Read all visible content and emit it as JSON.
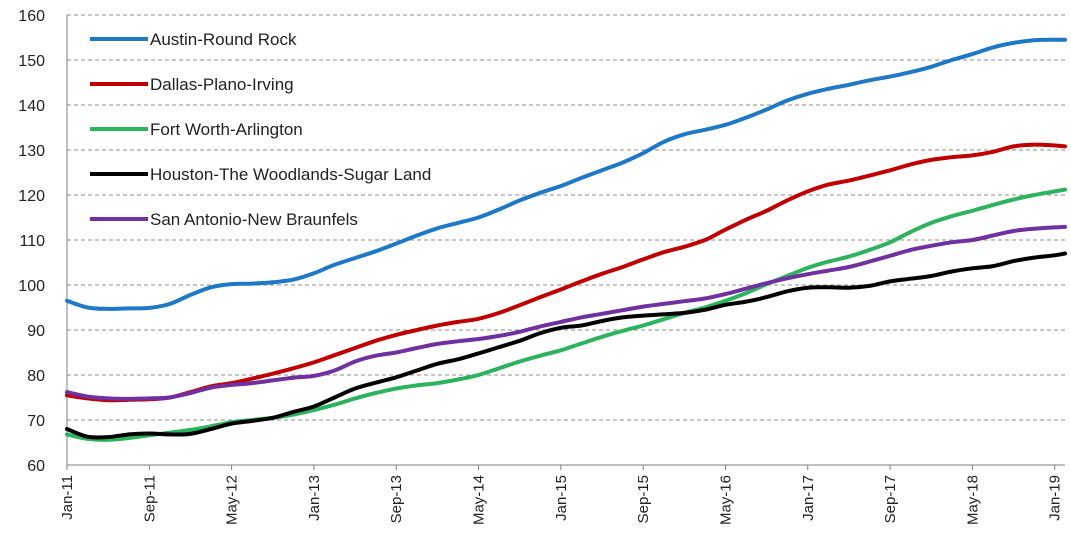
{
  "chart_data": {
    "type": "line",
    "title": "",
    "xlabel": "",
    "ylabel": "",
    "ylim": [
      60,
      160
    ],
    "y_ticks": [
      60,
      70,
      80,
      90,
      100,
      110,
      120,
      130,
      140,
      150,
      160
    ],
    "grid": "horizontal dashed",
    "legend_position": "top-left",
    "x_tick_labels": [
      "Jan-11",
      "Sep-11",
      "May-12",
      "Jan-13",
      "Sep-13",
      "May-14",
      "Jan-15",
      "Sep-15",
      "May-16",
      "Jan-17",
      "Sep-17",
      "May-18",
      "Jan-19"
    ],
    "x_start": "2011-01",
    "x_end": "2019-02",
    "series": [
      {
        "name": "Austin-Round Rock",
        "color": "#1f77c8",
        "points": [
          [
            "2011-01",
            96.5
          ],
          [
            "2011-03",
            95.0
          ],
          [
            "2011-05",
            94.7
          ],
          [
            "2011-07",
            94.8
          ],
          [
            "2011-09",
            94.9
          ],
          [
            "2011-11",
            95.8
          ],
          [
            "2012-01",
            97.8
          ],
          [
            "2012-03",
            99.5
          ],
          [
            "2012-05",
            100.2
          ],
          [
            "2012-07",
            100.3
          ],
          [
            "2012-09",
            100.6
          ],
          [
            "2012-11",
            101.2
          ],
          [
            "2013-01",
            102.6
          ],
          [
            "2013-03",
            104.5
          ],
          [
            "2013-05",
            106.0
          ],
          [
            "2013-07",
            107.5
          ],
          [
            "2013-09",
            109.2
          ],
          [
            "2013-11",
            111.0
          ],
          [
            "2014-01",
            112.6
          ],
          [
            "2014-03",
            113.8
          ],
          [
            "2014-05",
            115.0
          ],
          [
            "2014-07",
            116.8
          ],
          [
            "2014-09",
            118.8
          ],
          [
            "2014-11",
            120.5
          ],
          [
            "2015-01",
            122.0
          ],
          [
            "2015-03",
            123.8
          ],
          [
            "2015-05",
            125.5
          ],
          [
            "2015-07",
            127.2
          ],
          [
            "2015-09",
            129.3
          ],
          [
            "2015-11",
            131.8
          ],
          [
            "2016-01",
            133.5
          ],
          [
            "2016-03",
            134.5
          ],
          [
            "2016-05",
            135.6
          ],
          [
            "2016-07",
            137.2
          ],
          [
            "2016-09",
            139.0
          ],
          [
            "2016-11",
            141.0
          ],
          [
            "2017-01",
            142.5
          ],
          [
            "2017-03",
            143.6
          ],
          [
            "2017-05",
            144.5
          ],
          [
            "2017-07",
            145.5
          ],
          [
            "2017-09",
            146.3
          ],
          [
            "2017-11",
            147.3
          ],
          [
            "2018-01",
            148.5
          ],
          [
            "2018-03",
            150.0
          ],
          [
            "2018-05",
            151.3
          ],
          [
            "2018-07",
            152.8
          ],
          [
            "2018-09",
            153.8
          ],
          [
            "2018-11",
            154.4
          ],
          [
            "2019-01",
            154.5
          ],
          [
            "2019-02",
            154.5
          ]
        ]
      },
      {
        "name": "Dallas-Plano-Irving",
        "color": "#c00000",
        "points": [
          [
            "2011-01",
            75.5
          ],
          [
            "2011-03",
            74.8
          ],
          [
            "2011-05",
            74.4
          ],
          [
            "2011-07",
            74.5
          ],
          [
            "2011-09",
            74.6
          ],
          [
            "2011-11",
            75.0
          ],
          [
            "2012-01",
            76.2
          ],
          [
            "2012-03",
            77.5
          ],
          [
            "2012-05",
            78.2
          ],
          [
            "2012-07",
            79.2
          ],
          [
            "2012-09",
            80.3
          ],
          [
            "2012-11",
            81.5
          ],
          [
            "2013-01",
            82.8
          ],
          [
            "2013-03",
            84.4
          ],
          [
            "2013-05",
            86.0
          ],
          [
            "2013-07",
            87.6
          ],
          [
            "2013-09",
            88.9
          ],
          [
            "2013-11",
            90.0
          ],
          [
            "2014-01",
            91.0
          ],
          [
            "2014-03",
            91.8
          ],
          [
            "2014-05",
            92.5
          ],
          [
            "2014-07",
            93.8
          ],
          [
            "2014-09",
            95.5
          ],
          [
            "2014-11",
            97.3
          ],
          [
            "2015-01",
            99.0
          ],
          [
            "2015-03",
            100.8
          ],
          [
            "2015-05",
            102.5
          ],
          [
            "2015-07",
            104.0
          ],
          [
            "2015-09",
            105.7
          ],
          [
            "2015-11",
            107.3
          ],
          [
            "2016-01",
            108.5
          ],
          [
            "2016-03",
            110.0
          ],
          [
            "2016-05",
            112.3
          ],
          [
            "2016-07",
            114.5
          ],
          [
            "2016-09",
            116.5
          ],
          [
            "2016-11",
            118.8
          ],
          [
            "2017-01",
            120.8
          ],
          [
            "2017-03",
            122.3
          ],
          [
            "2017-05",
            123.2
          ],
          [
            "2017-07",
            124.3
          ],
          [
            "2017-09",
            125.5
          ],
          [
            "2017-11",
            126.8
          ],
          [
            "2018-01",
            127.8
          ],
          [
            "2018-03",
            128.4
          ],
          [
            "2018-05",
            128.8
          ],
          [
            "2018-07",
            129.6
          ],
          [
            "2018-09",
            130.8
          ],
          [
            "2018-11",
            131.2
          ],
          [
            "2019-01",
            131.0
          ],
          [
            "2019-02",
            130.8
          ]
        ]
      },
      {
        "name": "Fort Worth-Arlington",
        "color": "#2db35d",
        "points": [
          [
            "2011-01",
            66.8
          ],
          [
            "2011-03",
            65.8
          ],
          [
            "2011-05",
            65.6
          ],
          [
            "2011-07",
            66.0
          ],
          [
            "2011-09",
            66.6
          ],
          [
            "2011-11",
            67.2
          ],
          [
            "2012-01",
            67.8
          ],
          [
            "2012-03",
            68.6
          ],
          [
            "2012-05",
            69.5
          ],
          [
            "2012-07",
            70.0
          ],
          [
            "2012-09",
            70.5
          ],
          [
            "2012-11",
            71.2
          ],
          [
            "2013-01",
            72.2
          ],
          [
            "2013-03",
            73.4
          ],
          [
            "2013-05",
            74.8
          ],
          [
            "2013-07",
            76.0
          ],
          [
            "2013-09",
            77.0
          ],
          [
            "2013-11",
            77.7
          ],
          [
            "2014-01",
            78.2
          ],
          [
            "2014-03",
            79.0
          ],
          [
            "2014-05",
            80.0
          ],
          [
            "2014-07",
            81.5
          ],
          [
            "2014-09",
            83.0
          ],
          [
            "2014-11",
            84.3
          ],
          [
            "2015-01",
            85.5
          ],
          [
            "2015-03",
            87.0
          ],
          [
            "2015-05",
            88.5
          ],
          [
            "2015-07",
            89.8
          ],
          [
            "2015-09",
            91.0
          ],
          [
            "2015-11",
            92.4
          ],
          [
            "2016-01",
            93.8
          ],
          [
            "2016-03",
            95.0
          ],
          [
            "2016-05",
            96.5
          ],
          [
            "2016-07",
            98.2
          ],
          [
            "2016-09",
            100.2
          ],
          [
            "2016-11",
            102.0
          ],
          [
            "2017-01",
            103.8
          ],
          [
            "2017-03",
            105.2
          ],
          [
            "2017-05",
            106.3
          ],
          [
            "2017-07",
            107.8
          ],
          [
            "2017-09",
            109.5
          ],
          [
            "2017-11",
            111.8
          ],
          [
            "2018-01",
            113.8
          ],
          [
            "2018-03",
            115.3
          ],
          [
            "2018-05",
            116.5
          ],
          [
            "2018-07",
            117.8
          ],
          [
            "2018-09",
            119.0
          ],
          [
            "2018-11",
            120.0
          ],
          [
            "2019-01",
            120.8
          ],
          [
            "2019-02",
            121.2
          ]
        ]
      },
      {
        "name": "Houston-The Woodlands-Sugar Land",
        "color": "#000000",
        "points": [
          [
            "2011-01",
            68.0
          ],
          [
            "2011-03",
            66.3
          ],
          [
            "2011-05",
            66.2
          ],
          [
            "2011-07",
            66.8
          ],
          [
            "2011-09",
            67.0
          ],
          [
            "2011-11",
            66.8
          ],
          [
            "2012-01",
            66.9
          ],
          [
            "2012-03",
            68.0
          ],
          [
            "2012-05",
            69.2
          ],
          [
            "2012-07",
            69.8
          ],
          [
            "2012-09",
            70.5
          ],
          [
            "2012-11",
            71.8
          ],
          [
            "2013-01",
            73.0
          ],
          [
            "2013-03",
            75.0
          ],
          [
            "2013-05",
            77.0
          ],
          [
            "2013-07",
            78.3
          ],
          [
            "2013-09",
            79.5
          ],
          [
            "2013-11",
            81.0
          ],
          [
            "2014-01",
            82.5
          ],
          [
            "2014-03",
            83.5
          ],
          [
            "2014-05",
            84.8
          ],
          [
            "2014-07",
            86.2
          ],
          [
            "2014-09",
            87.6
          ],
          [
            "2014-11",
            89.3
          ],
          [
            "2015-01",
            90.5
          ],
          [
            "2015-03",
            91.0
          ],
          [
            "2015-05",
            92.0
          ],
          [
            "2015-07",
            92.8
          ],
          [
            "2015-09",
            93.2
          ],
          [
            "2015-11",
            93.5
          ],
          [
            "2016-01",
            93.8
          ],
          [
            "2016-03",
            94.5
          ],
          [
            "2016-05",
            95.6
          ],
          [
            "2016-07",
            96.3
          ],
          [
            "2016-09",
            97.3
          ],
          [
            "2016-11",
            98.6
          ],
          [
            "2017-01",
            99.4
          ],
          [
            "2017-03",
            99.5
          ],
          [
            "2017-05",
            99.4
          ],
          [
            "2017-07",
            99.8
          ],
          [
            "2017-09",
            100.8
          ],
          [
            "2017-11",
            101.4
          ],
          [
            "2018-01",
            102.0
          ],
          [
            "2018-03",
            103.0
          ],
          [
            "2018-05",
            103.7
          ],
          [
            "2018-07",
            104.2
          ],
          [
            "2018-09",
            105.3
          ],
          [
            "2018-11",
            106.1
          ],
          [
            "2019-01",
            106.6
          ],
          [
            "2019-02",
            107.0
          ]
        ]
      },
      {
        "name": "San Antonio-New Braunfels",
        "color": "#7030a0",
        "points": [
          [
            "2011-01",
            76.2
          ],
          [
            "2011-03",
            75.2
          ],
          [
            "2011-05",
            74.8
          ],
          [
            "2011-07",
            74.7
          ],
          [
            "2011-09",
            74.8
          ],
          [
            "2011-11",
            75.0
          ],
          [
            "2012-01",
            76.0
          ],
          [
            "2012-03",
            77.2
          ],
          [
            "2012-05",
            77.8
          ],
          [
            "2012-07",
            78.2
          ],
          [
            "2012-09",
            78.8
          ],
          [
            "2012-11",
            79.4
          ],
          [
            "2013-01",
            79.8
          ],
          [
            "2013-03",
            81.0
          ],
          [
            "2013-05",
            83.0
          ],
          [
            "2013-07",
            84.3
          ],
          [
            "2013-09",
            85.0
          ],
          [
            "2013-11",
            86.0
          ],
          [
            "2014-01",
            86.9
          ],
          [
            "2014-03",
            87.5
          ],
          [
            "2014-05",
            88.0
          ],
          [
            "2014-07",
            88.7
          ],
          [
            "2014-09",
            89.6
          ],
          [
            "2014-11",
            90.8
          ],
          [
            "2015-01",
            91.8
          ],
          [
            "2015-03",
            92.8
          ],
          [
            "2015-05",
            93.6
          ],
          [
            "2015-07",
            94.4
          ],
          [
            "2015-09",
            95.2
          ],
          [
            "2015-11",
            95.8
          ],
          [
            "2016-01",
            96.4
          ],
          [
            "2016-03",
            97.0
          ],
          [
            "2016-05",
            98.0
          ],
          [
            "2016-07",
            99.2
          ],
          [
            "2016-09",
            100.4
          ],
          [
            "2016-11",
            101.5
          ],
          [
            "2017-01",
            102.4
          ],
          [
            "2017-03",
            103.2
          ],
          [
            "2017-05",
            104.0
          ],
          [
            "2017-07",
            105.2
          ],
          [
            "2017-09",
            106.5
          ],
          [
            "2017-11",
            107.8
          ],
          [
            "2018-01",
            108.7
          ],
          [
            "2018-03",
            109.5
          ],
          [
            "2018-05",
            110.0
          ],
          [
            "2018-07",
            111.0
          ],
          [
            "2018-09",
            112.0
          ],
          [
            "2018-11",
            112.5
          ],
          [
            "2019-01",
            112.8
          ],
          [
            "2019-02",
            112.9
          ]
        ]
      }
    ]
  }
}
